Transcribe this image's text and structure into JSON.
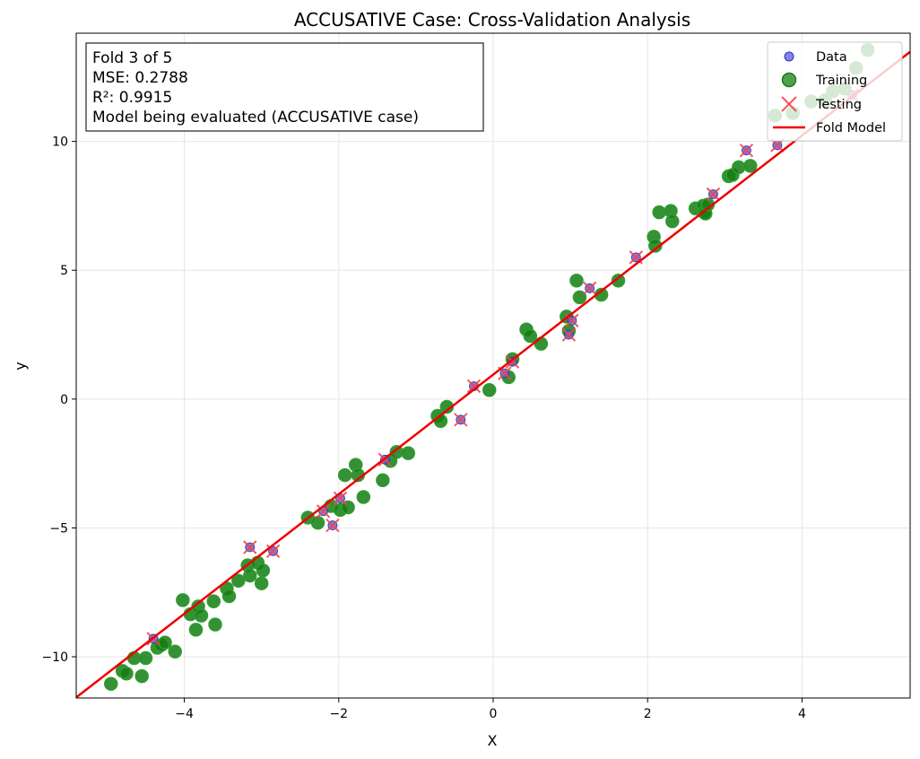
{
  "chart_data": {
    "type": "scatter",
    "title": "ACCUSATIVE Case: Cross-Validation Analysis",
    "xlabel": "X",
    "ylabel": "y",
    "xlim": [
      -5.4,
      5.4
    ],
    "ylim": [
      -11.6,
      14.2
    ],
    "x_ticks": [
      -4,
      -2,
      0,
      2,
      4
    ],
    "y_ticks": [
      -10,
      -5,
      0,
      5,
      10
    ],
    "grid": true,
    "legend_position": "top-right",
    "colors": {
      "data": "#5b5bdc",
      "training": "#137c13",
      "training_edge": "#2e9c2e",
      "testing": "#f04646",
      "model": "#ee0000"
    },
    "info_box": {
      "lines": [
        "Fold 3 of 5",
        "MSE: 0.2788",
        "R²: 0.9915",
        "Model being evaluated (ACCUSATIVE case)"
      ]
    },
    "series": [
      {
        "name": "Data",
        "type": "scatter",
        "points": [
          [
            -4.4,
            -9.3
          ],
          [
            -3.15,
            -5.75
          ],
          [
            -2.85,
            -5.9
          ],
          [
            -2.2,
            -4.35
          ],
          [
            -2.08,
            -4.9
          ],
          [
            -1.98,
            -3.85
          ],
          [
            -1.4,
            -2.35
          ],
          [
            -0.42,
            -0.8
          ],
          [
            -0.25,
            0.5
          ],
          [
            0.15,
            1.0
          ],
          [
            0.25,
            1.45
          ],
          [
            0.98,
            2.5
          ],
          [
            1.02,
            3.05
          ],
          [
            1.25,
            4.3
          ],
          [
            1.85,
            5.5
          ],
          [
            2.85,
            7.95
          ],
          [
            3.28,
            9.65
          ],
          [
            3.68,
            9.85
          ],
          [
            4.65,
            11.8
          ]
        ]
      },
      {
        "name": "Training",
        "type": "scatter",
        "points": [
          [
            -4.95,
            -11.05
          ],
          [
            -4.8,
            -10.55
          ],
          [
            -4.75,
            -10.65
          ],
          [
            -4.65,
            -10.05
          ],
          [
            -4.55,
            -10.75
          ],
          [
            -4.5,
            -10.05
          ],
          [
            -4.35,
            -9.65
          ],
          [
            -4.3,
            -9.55
          ],
          [
            -4.25,
            -9.45
          ],
          [
            -4.12,
            -9.8
          ],
          [
            -4.02,
            -7.8
          ],
          [
            -3.92,
            -8.35
          ],
          [
            -3.85,
            -8.95
          ],
          [
            -3.82,
            -8.05
          ],
          [
            -3.78,
            -8.4
          ],
          [
            -3.62,
            -7.85
          ],
          [
            -3.6,
            -8.75
          ],
          [
            -3.45,
            -7.35
          ],
          [
            -3.42,
            -7.65
          ],
          [
            -3.3,
            -7.05
          ],
          [
            -3.18,
            -6.45
          ],
          [
            -3.15,
            -6.85
          ],
          [
            -3.05,
            -6.35
          ],
          [
            -3.0,
            -7.15
          ],
          [
            -2.98,
            -6.65
          ],
          [
            -2.4,
            -4.6
          ],
          [
            -2.27,
            -4.8
          ],
          [
            -2.1,
            -4.15
          ],
          [
            -1.98,
            -4.3
          ],
          [
            -1.92,
            -2.95
          ],
          [
            -1.88,
            -4.2
          ],
          [
            -1.78,
            -2.55
          ],
          [
            -1.75,
            -2.95
          ],
          [
            -1.68,
            -3.8
          ],
          [
            -1.43,
            -3.15
          ],
          [
            -1.33,
            -2.4
          ],
          [
            -1.25,
            -2.05
          ],
          [
            -1.1,
            -2.1
          ],
          [
            -0.72,
            -0.65
          ],
          [
            -0.68,
            -0.85
          ],
          [
            -0.6,
            -0.3
          ],
          [
            -0.05,
            0.35
          ],
          [
            0.2,
            0.85
          ],
          [
            0.25,
            1.55
          ],
          [
            0.43,
            2.7
          ],
          [
            0.48,
            2.45
          ],
          [
            0.62,
            2.15
          ],
          [
            0.95,
            3.2
          ],
          [
            0.98,
            2.65
          ],
          [
            1.08,
            4.6
          ],
          [
            1.12,
            3.95
          ],
          [
            1.4,
            4.05
          ],
          [
            1.62,
            4.6
          ],
          [
            2.08,
            6.3
          ],
          [
            2.1,
            5.95
          ],
          [
            2.15,
            7.25
          ],
          [
            2.3,
            7.3
          ],
          [
            2.32,
            6.9
          ],
          [
            2.62,
            7.4
          ],
          [
            2.72,
            7.5
          ],
          [
            2.73,
            7.25
          ],
          [
            2.75,
            7.2
          ],
          [
            2.78,
            7.55
          ],
          [
            3.05,
            8.65
          ],
          [
            3.1,
            8.7
          ],
          [
            3.18,
            9.0
          ],
          [
            3.33,
            9.05
          ],
          [
            3.65,
            11.0
          ],
          [
            3.88,
            11.1
          ],
          [
            4.12,
            11.55
          ],
          [
            4.3,
            11.6
          ],
          [
            4.4,
            11.95
          ],
          [
            4.55,
            12.05
          ],
          [
            4.7,
            12.85
          ],
          [
            4.85,
            13.55
          ]
        ]
      },
      {
        "name": "Testing",
        "type": "scatter",
        "marker": "x",
        "points": [
          [
            -4.4,
            -9.3
          ],
          [
            -3.15,
            -5.75
          ],
          [
            -2.85,
            -5.9
          ],
          [
            -2.2,
            -4.35
          ],
          [
            -2.08,
            -4.9
          ],
          [
            -1.98,
            -3.85
          ],
          [
            -1.4,
            -2.35
          ],
          [
            -0.42,
            -0.8
          ],
          [
            -0.25,
            0.5
          ],
          [
            0.15,
            1.0
          ],
          [
            0.25,
            1.45
          ],
          [
            0.98,
            2.5
          ],
          [
            1.02,
            3.05
          ],
          [
            1.25,
            4.3
          ],
          [
            1.85,
            5.5
          ],
          [
            2.85,
            7.95
          ],
          [
            3.28,
            9.65
          ],
          [
            3.68,
            9.85
          ],
          [
            4.65,
            11.8
          ]
        ]
      },
      {
        "name": "Fold Model",
        "type": "line",
        "slope": 2.32,
        "intercept": 0.95
      }
    ]
  }
}
